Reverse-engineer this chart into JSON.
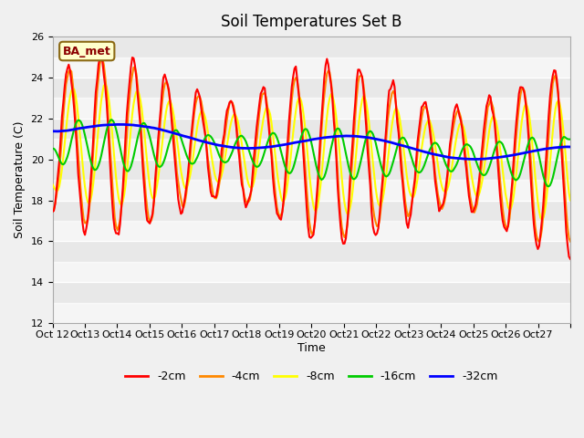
{
  "title": "Soil Temperatures Set B",
  "xlabel": "Time",
  "ylabel": "Soil Temperature (C)",
  "ylim": [
    12,
    26
  ],
  "annotation": "BA_met",
  "legend": [
    "-2cm",
    "-4cm",
    "-8cm",
    "-16cm",
    "-32cm"
  ],
  "line_colors": [
    "#ff0000",
    "#ff8800",
    "#ffff00",
    "#00cc00",
    "#0000ff"
  ],
  "line_widths": [
    1.5,
    1.5,
    1.5,
    1.5,
    2.0
  ],
  "xtick_labels": [
    "Oct 12",
    "Oct 13",
    "Oct 14",
    "Oct 15",
    "Oct 16",
    "Oct 17",
    "Oct 18",
    "Oct 19",
    "Oct 20",
    "Oct 21",
    "Oct 22",
    "Oct 23",
    "Oct 24",
    "Oct 25",
    "Oct 26",
    "Oct 27",
    ""
  ],
  "n_days": 16,
  "hours_per_day": 24
}
